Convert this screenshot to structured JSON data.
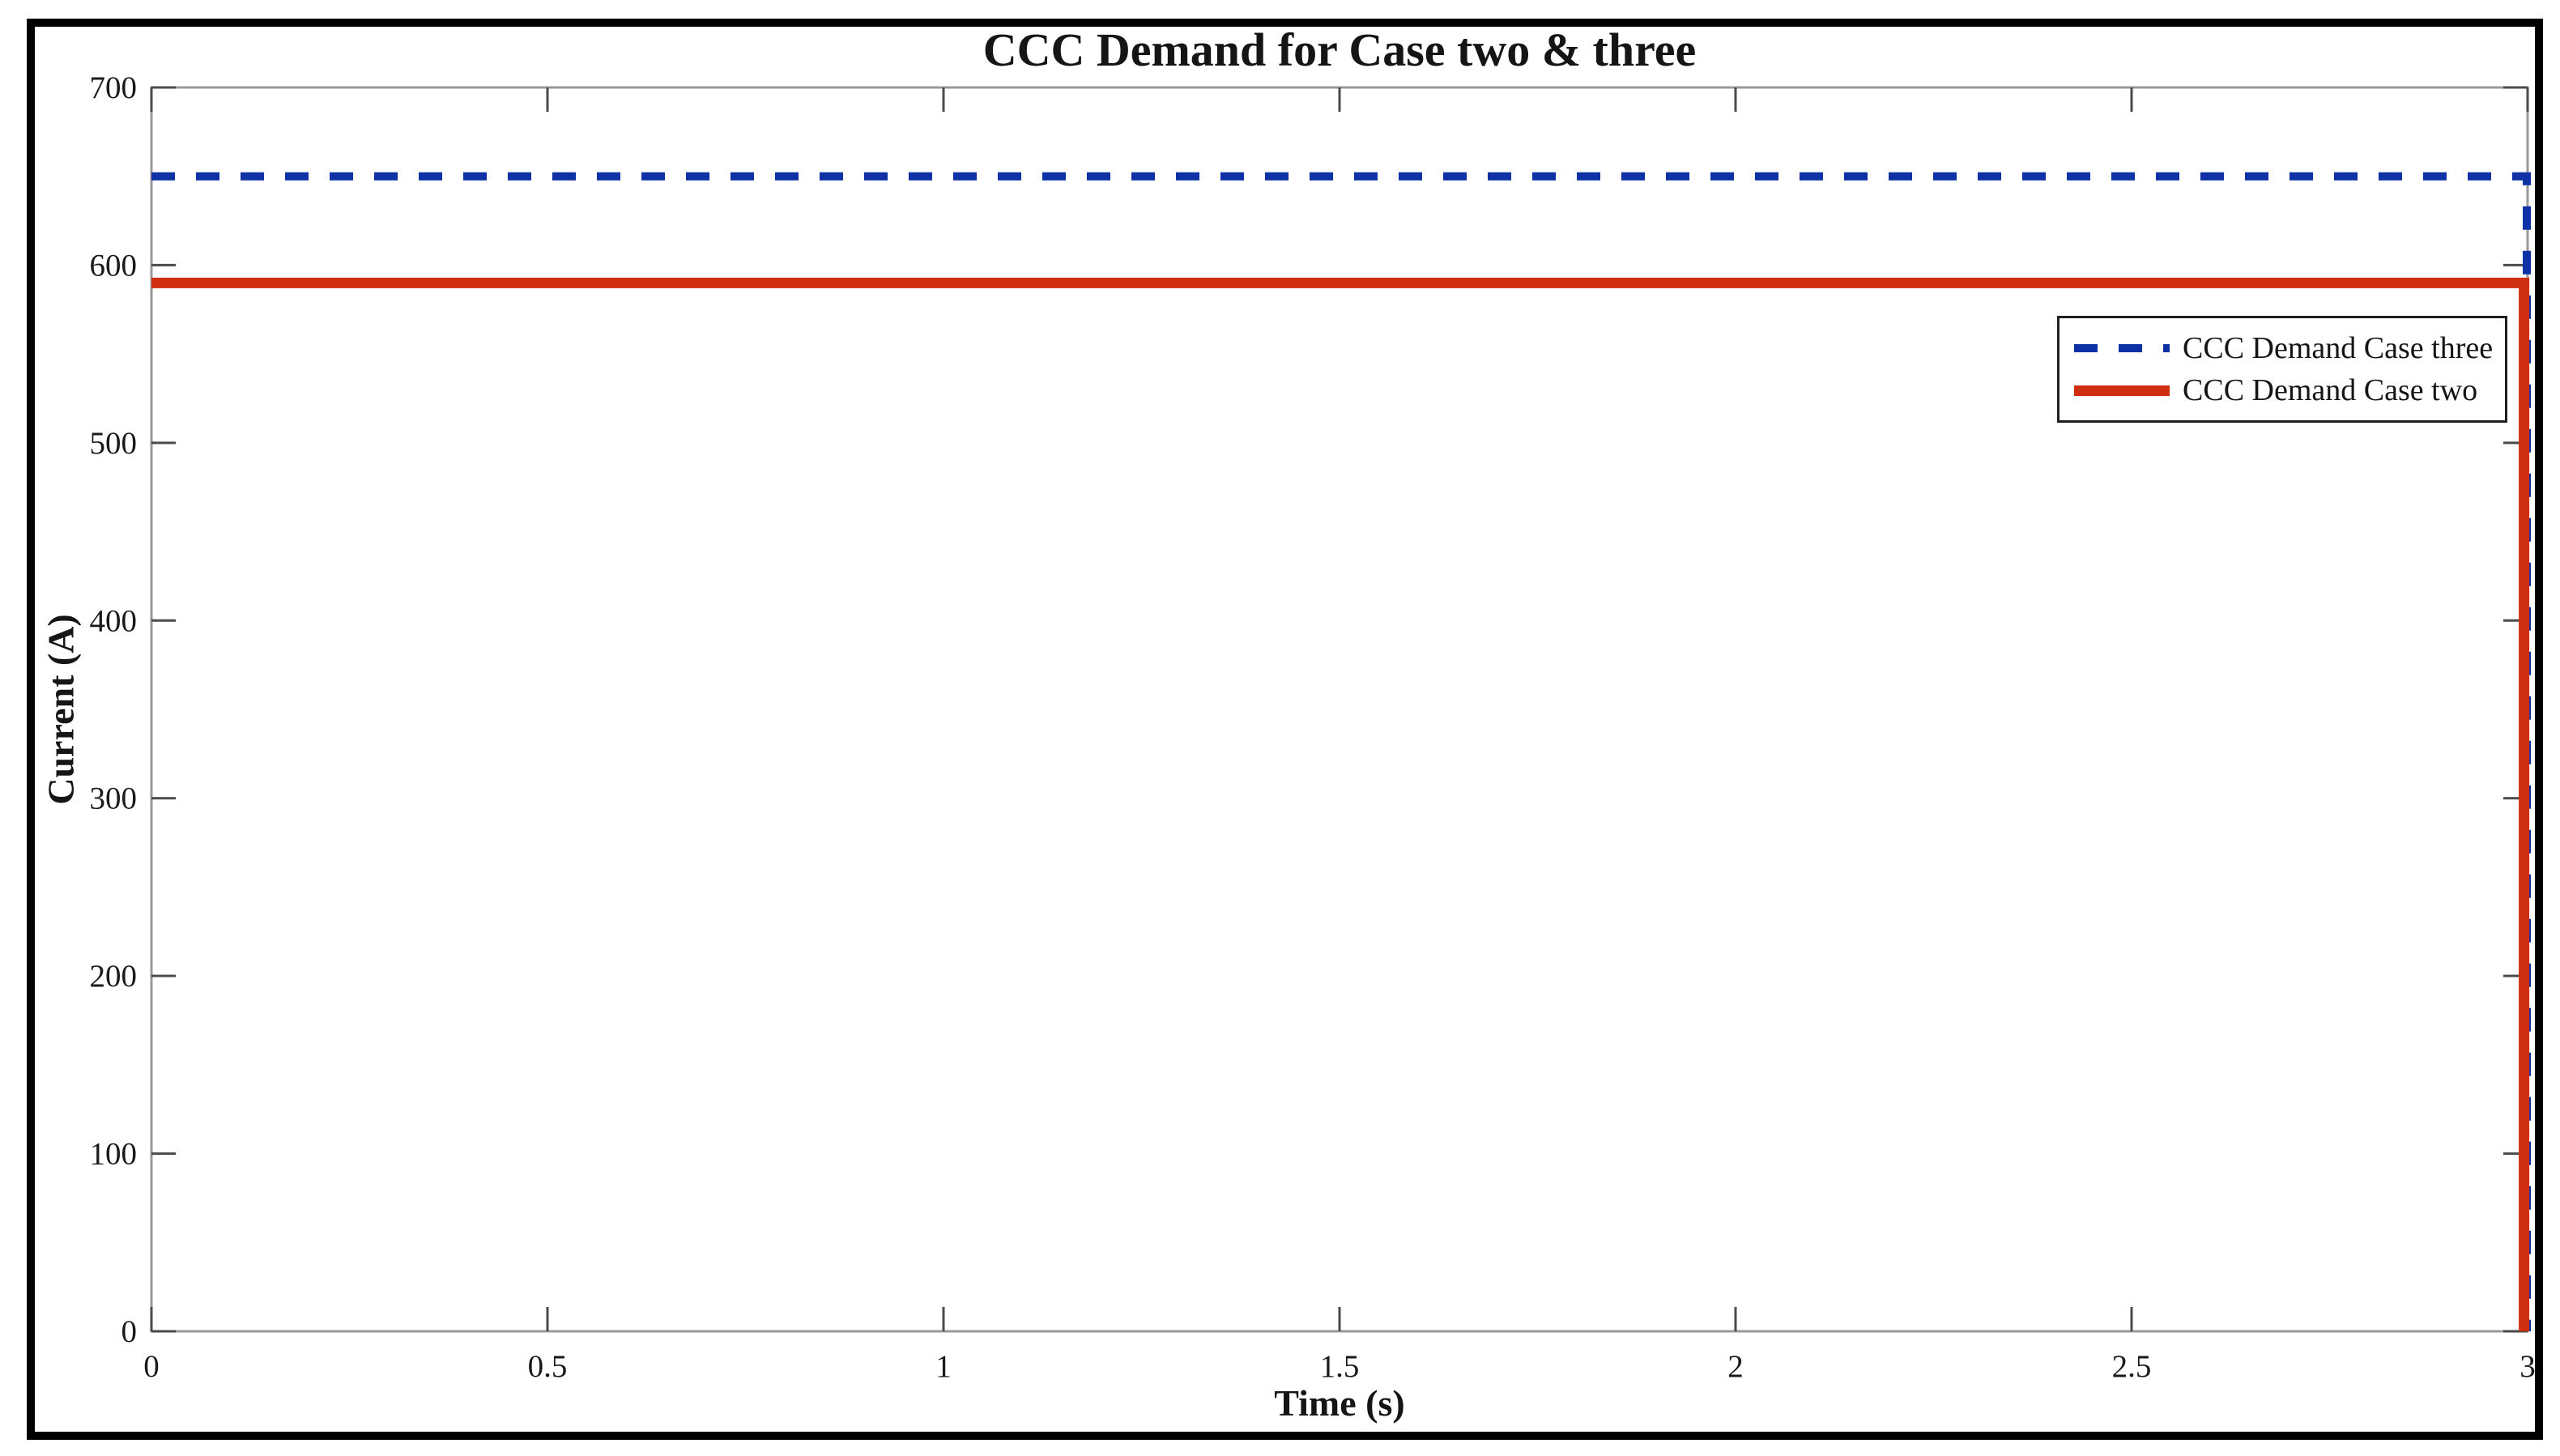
{
  "figure": {
    "background_color": "#ffffff",
    "frame_color": "#000000"
  },
  "chart_data": {
    "type": "line",
    "title": "CCC Demand for Case two & three",
    "xlabel": "Time (s)",
    "ylabel": "Current (A)",
    "xlim": [
      0,
      3
    ],
    "ylim": [
      0,
      700
    ],
    "grid": false,
    "axis_box": true,
    "axis_color": "#999999",
    "tick_color": "#4a4a4a",
    "text_color": "#1a1a1a",
    "xticks": {
      "values": [
        0,
        0.5,
        1,
        1.5,
        2,
        2.5,
        3
      ],
      "labels": [
        "0",
        "0.5",
        "1",
        "1.5",
        "2",
        "2.5",
        "3"
      ]
    },
    "yticks": {
      "values": [
        0,
        100,
        200,
        300,
        400,
        500,
        600,
        700
      ],
      "labels": [
        "0",
        "100",
        "200",
        "300",
        "400",
        "500",
        "600",
        "700"
      ]
    },
    "series": [
      {
        "name": "CCC Demand Case three",
        "color": "#0e32a6",
        "line_style": "dashed",
        "line_width": 10,
        "x": [
          0,
          2.999,
          2.999
        ],
        "y": [
          650,
          650,
          0
        ]
      },
      {
        "name": "CCC Demand Case two",
        "color": "#d02e10",
        "line_style": "solid",
        "line_width": 13,
        "x": [
          0,
          2.9955,
          2.9955
        ],
        "y": [
          590,
          590,
          0
        ]
      }
    ],
    "legend": {
      "position": "inside-right",
      "border_color": "#1f1f1f",
      "background": "#ffffff"
    }
  }
}
